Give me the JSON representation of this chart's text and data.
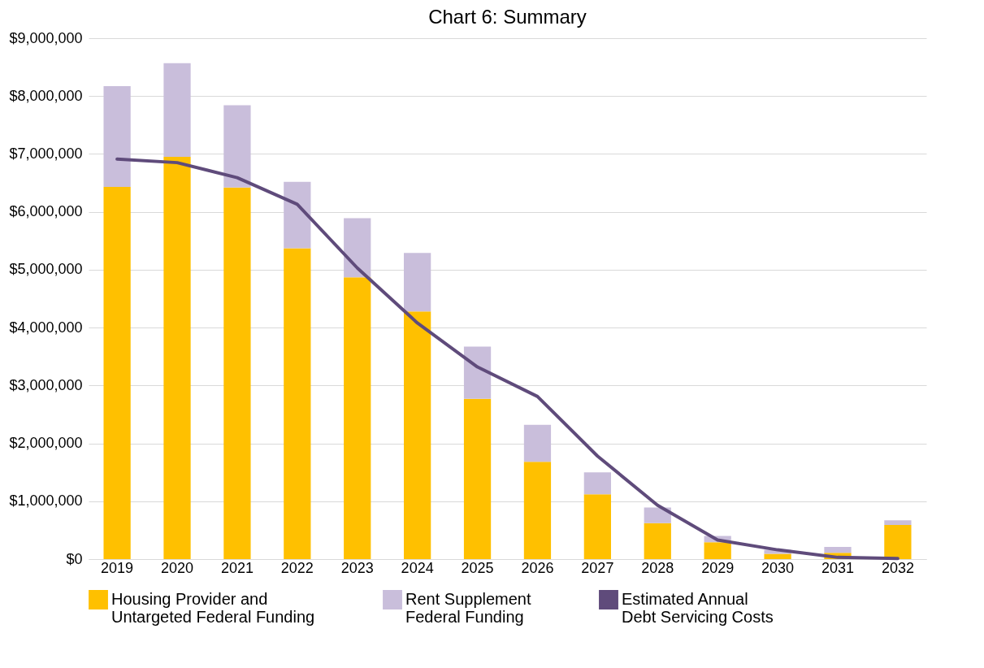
{
  "chart_data": {
    "type": "bar",
    "title": "Chart 6: Summary",
    "stacked": true,
    "grid": "y",
    "legend": "bottom",
    "categories": [
      "2019",
      "2020",
      "2021",
      "2022",
      "2023",
      "2024",
      "2025",
      "2026",
      "2027",
      "2028",
      "2029",
      "2030",
      "2031",
      "2032"
    ],
    "series": [
      {
        "name": "Housing Provider and Untargeted Federal Funding",
        "color": "#ffc000",
        "values": [
          6430000,
          6950000,
          6420000,
          5370000,
          4870000,
          4280000,
          2770000,
          1680000,
          1120000,
          620000,
          290000,
          90000,
          110000,
          590000
        ]
      },
      {
        "name": "Rent Supplement Federal Funding",
        "color": "#c9bedb",
        "values": [
          1740000,
          1620000,
          1420000,
          1150000,
          1020000,
          1010000,
          900000,
          640000,
          380000,
          270000,
          110000,
          70000,
          100000,
          80000
        ]
      },
      {
        "name": "Estimated Annual Debt Servicing Costs",
        "type": "line",
        "color": "#5f4b7b",
        "values": [
          6910000,
          6850000,
          6590000,
          6130000,
          5030000,
          4080000,
          3320000,
          2810000,
          1780000,
          930000,
          330000,
          160000,
          30000,
          10000
        ]
      }
    ],
    "ylim": [
      0,
      9000000
    ],
    "yticks": [
      {
        "value": 0,
        "label": "$0"
      },
      {
        "value": 1000000,
        "label": "$1,000,000"
      },
      {
        "value": 2000000,
        "label": "$2,000,000"
      },
      {
        "value": 3000000,
        "label": "$3,000,000"
      },
      {
        "value": 4000000,
        "label": "$4,000,000"
      },
      {
        "value": 5000000,
        "label": "$5,000,000"
      },
      {
        "value": 6000000,
        "label": "$6,000,000"
      },
      {
        "value": 7000000,
        "label": "$7,000,000"
      },
      {
        "value": 8000000,
        "label": "$8,000,000"
      },
      {
        "value": 9000000,
        "label": "$9,000,000"
      }
    ]
  }
}
